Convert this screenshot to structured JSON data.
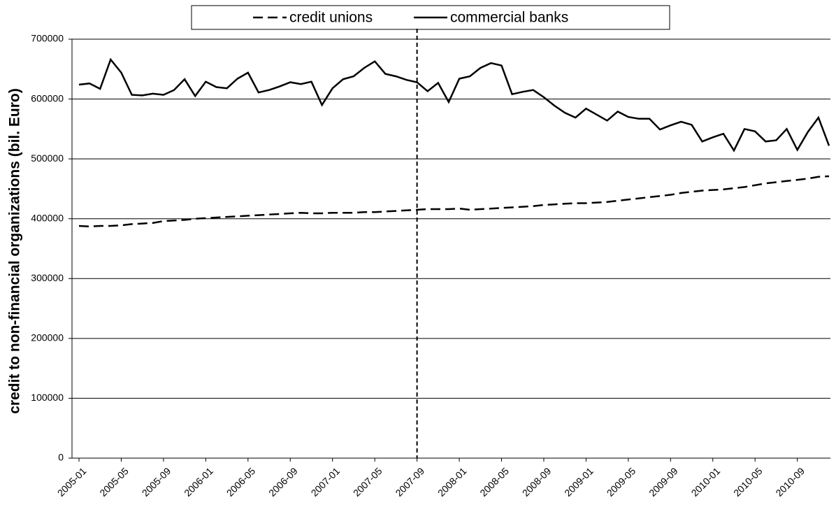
{
  "chart_data": {
    "type": "line",
    "y_label": "credit to non-financial organizations (bil. Euro)",
    "categories": [
      "2005-01",
      null,
      null,
      null,
      "2005-05",
      null,
      null,
      null,
      "2005-09",
      null,
      null,
      null,
      "2006-01",
      null,
      null,
      null,
      "2006-05",
      null,
      null,
      null,
      "2006-09",
      null,
      null,
      null,
      "2007-01",
      null,
      null,
      null,
      "2007-05",
      null,
      null,
      null,
      "2007-09",
      null,
      null,
      null,
      "2008-01",
      null,
      null,
      null,
      "2008-05",
      null,
      null,
      null,
      "2008-09",
      null,
      null,
      null,
      "2009-01",
      null,
      null,
      null,
      "2009-05",
      null,
      null,
      null,
      "2009-09",
      null,
      null,
      null,
      "2010-01",
      null,
      null,
      null,
      "2010-05",
      null,
      null,
      null,
      "2010-09",
      null,
      null,
      null
    ],
    "series": [
      {
        "name": "credit unions",
        "color": "#000000",
        "style": "dashed",
        "values": [
          388000,
          387000,
          388000,
          388000,
          389000,
          391000,
          392000,
          393000,
          396000,
          397000,
          398000,
          400000,
          401000,
          402000,
          403000,
          404000,
          405000,
          406000,
          407000,
          408000,
          409000,
          410000,
          409000,
          409000,
          410000,
          410000,
          410000,
          411000,
          411000,
          412000,
          413000,
          414000,
          415000,
          416000,
          416000,
          416000,
          417000,
          415000,
          416000,
          417000,
          418000,
          419000,
          420000,
          421000,
          423000,
          424000,
          425000,
          426000,
          426000,
          427000,
          428000,
          430000,
          432000,
          434000,
          436000,
          438000,
          440000,
          443000,
          445000,
          447000,
          448000,
          449000,
          451000,
          453000,
          456000,
          459000,
          461000,
          463000,
          465000,
          467000,
          470000,
          471000
        ]
      },
      {
        "name": "commercial banks",
        "color": "#000000",
        "style": "solid",
        "values": [
          624000,
          626000,
          617000,
          666000,
          644000,
          607000,
          606000,
          609000,
          607000,
          615000,
          633000,
          605000,
          629000,
          620000,
          618000,
          634000,
          644000,
          611000,
          615000,
          621000,
          628000,
          625000,
          629000,
          590000,
          618000,
          633000,
          638000,
          652000,
          663000,
          642000,
          638000,
          632000,
          628000,
          613000,
          627000,
          595000,
          634000,
          638000,
          652000,
          660000,
          656000,
          608000,
          612000,
          615000,
          603000,
          589000,
          577000,
          569000,
          584000,
          574000,
          564000,
          579000,
          570000,
          567000,
          567000,
          549000,
          556000,
          562000,
          557000,
          529000,
          536000,
          542000,
          514000,
          550000,
          546000,
          529000,
          531000,
          550000,
          515000,
          545000,
          569000,
          522000
        ]
      }
    ],
    "ylim": [
      0,
      700000
    ],
    "yticks": [
      0,
      100000,
      200000,
      300000,
      400000,
      500000,
      600000,
      700000
    ],
    "grid": true,
    "vline": "2007-09",
    "legend": "top"
  }
}
